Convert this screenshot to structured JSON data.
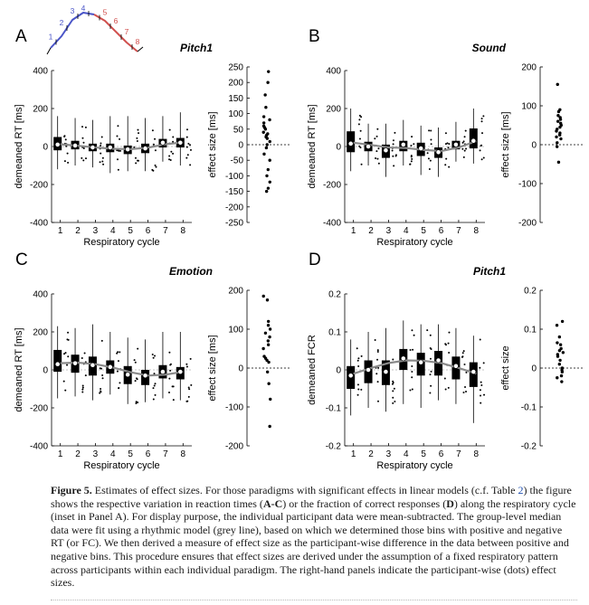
{
  "cycle_colors": [
    "#4a55c8",
    "#4a55c8",
    "#4a55c8",
    "#4a55c8",
    "#d0504e",
    "#d0504e",
    "#d0504e",
    "#d0504e"
  ],
  "inset": {
    "labels": [
      "1",
      "2",
      "3",
      "4",
      "5",
      "6",
      "7",
      "8"
    ]
  },
  "chart_data": [
    {
      "type": "box",
      "panel": "A",
      "title": "Pitch1",
      "xlabel": "Respiratory cycle",
      "ylabel": "demeaned RT [ms]",
      "categories": [
        "1",
        "2",
        "3",
        "4",
        "5",
        "6",
        "7",
        "8"
      ],
      "yticks": [
        "400",
        "200",
        "0",
        "-200",
        "-400"
      ],
      "ylim": [
        -400,
        400
      ],
      "medians": [
        10,
        5,
        -5,
        -5,
        -15,
        -10,
        20,
        20
      ],
      "q1": [
        -20,
        -15,
        -25,
        -30,
        -40,
        -35,
        -5,
        -5
      ],
      "q3": [
        50,
        30,
        15,
        15,
        5,
        15,
        40,
        45
      ],
      "whisker_low": [
        -120,
        -100,
        -110,
        -140,
        -130,
        -130,
        -80,
        -100
      ],
      "whisker_high": [
        160,
        150,
        140,
        160,
        160,
        150,
        160,
        180
      ],
      "fit": [
        12,
        4,
        -5,
        -12,
        -14,
        -6,
        12,
        22
      ],
      "effect": {
        "ylabel": "effect size [ms]",
        "yticks": [
          "250",
          "200",
          "150",
          "100",
          "50",
          "0",
          "-50",
          "-100",
          "-150",
          "-200",
          "-250"
        ],
        "ylim": [
          -250,
          250
        ],
        "values": [
          235,
          200,
          160,
          120,
          90,
          80,
          70,
          60,
          55,
          50,
          40,
          35,
          30,
          25,
          20,
          10,
          0,
          -10,
          -30,
          -50,
          -80,
          -100,
          -120,
          -140,
          -150
        ]
      }
    },
    {
      "type": "box",
      "panel": "B",
      "title": "Sound",
      "xlabel": "Respiratory cycle",
      "ylabel": "demeaned RT [ms]",
      "categories": [
        "1",
        "2",
        "3",
        "4",
        "5",
        "6",
        "7",
        "8"
      ],
      "yticks": [
        "400",
        "200",
        "0",
        "-200",
        "-400"
      ],
      "ylim": [
        -400,
        400
      ],
      "medians": [
        15,
        0,
        -20,
        10,
        -10,
        -30,
        10,
        30
      ],
      "q1": [
        -30,
        -25,
        -60,
        -25,
        -50,
        -60,
        -15,
        -10
      ],
      "q3": [
        80,
        25,
        10,
        30,
        20,
        -5,
        30,
        95
      ],
      "whisker_low": [
        -130,
        -100,
        -160,
        -100,
        -150,
        -160,
        -80,
        -90
      ],
      "whisker_high": [
        200,
        120,
        120,
        140,
        110,
        100,
        130,
        200
      ],
      "fit": [
        20,
        8,
        -5,
        -8,
        -18,
        -24,
        -5,
        28
      ],
      "effect": {
        "ylabel": "effect size [ms]",
        "yticks": [
          "200",
          "100",
          "0",
          "-100",
          "-200"
        ],
        "ylim": [
          -200,
          200
        ],
        "values": [
          155,
          90,
          85,
          75,
          70,
          65,
          60,
          55,
          50,
          45,
          40,
          35,
          30,
          25,
          20,
          15,
          5,
          -5,
          -45
        ]
      }
    },
    {
      "type": "box",
      "panel": "C",
      "title": "Emotion",
      "xlabel": "Respiratory cycle",
      "ylabel": "demeaned RT [ms]",
      "categories": [
        "1",
        "2",
        "3",
        "4",
        "5",
        "6",
        "7",
        "8"
      ],
      "yticks": [
        "400",
        "200",
        "0",
        "-200",
        "-400"
      ],
      "ylim": [
        -400,
        400
      ],
      "medians": [
        30,
        35,
        25,
        15,
        -25,
        -30,
        -10,
        -10
      ],
      "q1": [
        -10,
        -15,
        -30,
        -20,
        -75,
        -80,
        -45,
        -50
      ],
      "q3": [
        105,
        80,
        70,
        50,
        20,
        0,
        25,
        15
      ],
      "whisker_low": [
        -150,
        -140,
        -160,
        -130,
        -180,
        -170,
        -150,
        -160
      ],
      "whisker_high": [
        230,
        220,
        240,
        200,
        170,
        160,
        200,
        200
      ],
      "fit": [
        35,
        38,
        30,
        12,
        -12,
        -30,
        -25,
        -10
      ],
      "effect": {
        "ylabel": "effect size [ms]",
        "yticks": [
          "200",
          "100",
          "0",
          "-100",
          "-200"
        ],
        "ylim": [
          -200,
          200
        ],
        "values": [
          185,
          175,
          120,
          110,
          100,
          90,
          80,
          70,
          60,
          50,
          30,
          25,
          20,
          15,
          -10,
          -40,
          -80,
          -150
        ]
      }
    },
    {
      "type": "box",
      "panel": "D",
      "title": "Pitch1",
      "xlabel": "Respiratory cycle",
      "ylabel": "demeaned FCR",
      "categories": [
        "1",
        "2",
        "3",
        "4",
        "5",
        "6",
        "7",
        "8"
      ],
      "yticks": [
        "0.2",
        "0.1",
        "0",
        "-0.1",
        "-0.2"
      ],
      "ylim": [
        -0.2,
        0.2
      ],
      "medians": [
        -0.015,
        0.0,
        -0.005,
        0.03,
        0.02,
        0.025,
        0.01,
        -0.005
      ],
      "q1": [
        -0.05,
        -0.035,
        -0.04,
        0.0,
        -0.015,
        -0.015,
        -0.025,
        -0.045
      ],
      "q3": [
        0.01,
        0.025,
        0.025,
        0.055,
        0.045,
        0.05,
        0.035,
        0.02
      ],
      "whisker_low": [
        -0.12,
        -0.1,
        -0.11,
        -0.09,
        -0.1,
        -0.08,
        -0.09,
        -0.14
      ],
      "whisker_high": [
        0.08,
        0.1,
        0.11,
        0.13,
        0.12,
        0.12,
        0.11,
        0.09
      ],
      "fit": [
        -0.01,
        0.005,
        0.018,
        0.025,
        0.024,
        0.018,
        0.005,
        -0.01
      ],
      "effect": {
        "ylabel": "effect size",
        "yticks": [
          "0.2",
          "0.1",
          "0",
          "-0.1",
          "-0.2"
        ],
        "ylim": [
          -0.2,
          0.2
        ],
        "values": [
          0.12,
          0.11,
          0.08,
          0.065,
          0.06,
          0.05,
          0.045,
          0.04,
          0.035,
          0.03,
          0.02,
          0.01,
          0.0,
          -0.005,
          -0.01,
          -0.02,
          -0.025,
          -0.035
        ]
      }
    }
  ],
  "caption": {
    "label": "Figure 5.",
    "text_1": " Estimates of effect sizes. For those paradigms with significant effects in linear models (c.f. Table ",
    "table_ref": "2",
    "text_2": ") the figure shows the respective variation in reaction times (",
    "ac": "A-C",
    "text_3": ") or the fraction of correct responses (",
    "d": "D",
    "text_4": ") along the respiratory cycle (inset in Panel A). For display purpose, the individual participant data were mean-subtracted. The group-level median data were fit using a rhythmic model (grey line), based on which we determined those bins with positive and negative RT (or FC). We then derived a measure of effect size as the participant-wise difference in the data between positive and negative bins. This procedure ensures that effect sizes are derived under the assumption of a fixed respiratory pattern across participants within each individual paradigm. The right-hand panels indicate the participant-wise (dots) effect sizes."
  }
}
